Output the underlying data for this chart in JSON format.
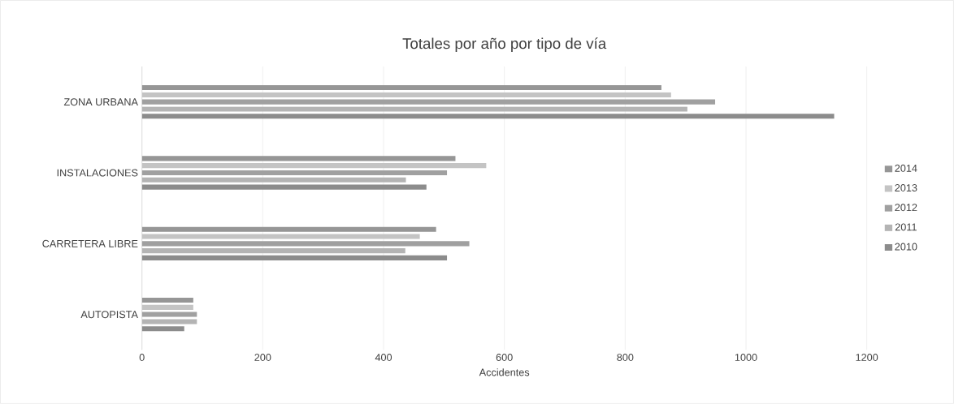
{
  "chart_data": {
    "type": "bar",
    "orientation": "horizontal",
    "title": "Totales por año por tipo de vía",
    "xlabel": "Accidentes",
    "categories": [
      "ZONA URBANA",
      "INSTALACIONES",
      "CARRETERA LIBRE",
      "AUTOPISTA"
    ],
    "series": [
      {
        "name": "2010",
        "color": "#8c8c8c",
        "values": [
          1146,
          471,
          505,
          70
        ]
      },
      {
        "name": "2011",
        "color": "#b4b4b4",
        "values": [
          903,
          437,
          436,
          91
        ]
      },
      {
        "name": "2012",
        "color": "#a0a0a0",
        "values": [
          949,
          505,
          542,
          91
        ]
      },
      {
        "name": "2013",
        "color": "#c4c4c4",
        "values": [
          876,
          570,
          460,
          85
        ]
      },
      {
        "name": "2014",
        "color": "#969696",
        "values": [
          860,
          519,
          487,
          85
        ]
      }
    ],
    "xlim": [
      0,
      1200
    ],
    "xticks": [
      0,
      200,
      400,
      600,
      800,
      1000,
      1200
    ],
    "grid": "x",
    "legend": "right"
  }
}
